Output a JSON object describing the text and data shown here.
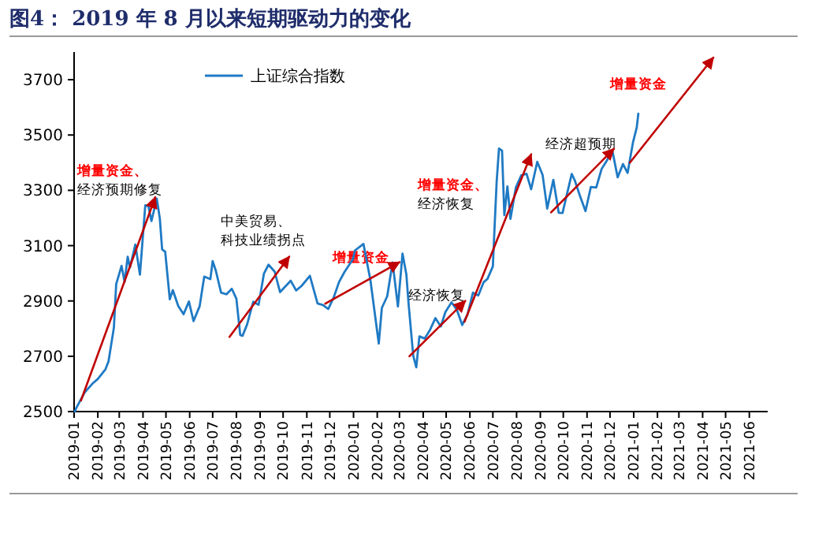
{
  "chart_data": {
    "type": "line",
    "title": "图4：  2019 年 8 月以来短期驱动力的变化",
    "xlim": [
      "2019-01-01",
      "2021-06-25"
    ],
    "xticks": [
      "2019-01",
      "2019-02",
      "2019-03",
      "2019-04",
      "2019-05",
      "2019-06",
      "2019-07",
      "2019-08",
      "2019-09",
      "2019-10",
      "2019-11",
      "2019-12",
      "2020-01",
      "2020-02",
      "2020-03",
      "2020-04",
      "2020-05",
      "2020-06",
      "2020-07",
      "2020-08",
      "2020-09",
      "2020-10",
      "2020-11",
      "2020-12",
      "2021-01",
      "2021-02",
      "2021-03",
      "2021-04",
      "2021-05",
      "2021-06"
    ],
    "ylim": [
      2500,
      3800
    ],
    "yticks": [
      2500,
      2700,
      2900,
      3100,
      3300,
      3500,
      3700
    ],
    "legend": "top left",
    "grid": false,
    "series": [
      {
        "name": "上证综合指数",
        "color": "#1f7ac4",
        "type": "line",
        "x": [
          "2019-01-02",
          "2019-01-04",
          "2019-01-15",
          "2019-01-25",
          "2019-02-01",
          "2019-02-11",
          "2019-02-15",
          "2019-02-22",
          "2019-02-25",
          "2019-03-04",
          "2019-03-08",
          "2019-03-12",
          "2019-03-15",
          "2019-03-22",
          "2019-03-28",
          "2019-04-04",
          "2019-04-08",
          "2019-04-12",
          "2019-04-19",
          "2019-04-23",
          "2019-04-26",
          "2019-04-30",
          "2019-05-06",
          "2019-05-10",
          "2019-05-17",
          "2019-05-24",
          "2019-05-31",
          "2019-06-06",
          "2019-06-14",
          "2019-06-20",
          "2019-06-28",
          "2019-07-01",
          "2019-07-05",
          "2019-07-12",
          "2019-07-19",
          "2019-07-26",
          "2019-08-01",
          "2019-08-06",
          "2019-08-09",
          "2019-08-15",
          "2019-08-23",
          "2019-08-30",
          "2019-09-06",
          "2019-09-12",
          "2019-09-20",
          "2019-09-27",
          "2019-10-11",
          "2019-10-18",
          "2019-10-25",
          "2019-11-05",
          "2019-11-15",
          "2019-11-22",
          "2019-11-29",
          "2019-12-06",
          "2019-12-13",
          "2019-12-20",
          "2019-12-31",
          "2020-01-03",
          "2020-01-14",
          "2020-01-23",
          "2020-02-03",
          "2020-02-07",
          "2020-02-14",
          "2020-02-21",
          "2020-02-28",
          "2020-03-05",
          "2020-03-10",
          "2020-03-13",
          "2020-03-19",
          "2020-03-23",
          "2020-03-27",
          "2020-04-03",
          "2020-04-10",
          "2020-04-17",
          "2020-04-24",
          "2020-04-30",
          "2020-05-08",
          "2020-05-15",
          "2020-05-22",
          "2020-05-29",
          "2020-06-05",
          "2020-06-12",
          "2020-06-19",
          "2020-06-24",
          "2020-07-01",
          "2020-07-03",
          "2020-07-06",
          "2020-07-09",
          "2020-07-13",
          "2020-07-16",
          "2020-07-20",
          "2020-07-24",
          "2020-07-31",
          "2020-08-07",
          "2020-08-14",
          "2020-08-20",
          "2020-08-28",
          "2020-09-04",
          "2020-09-10",
          "2020-09-18",
          "2020-09-25",
          "2020-09-30",
          "2020-10-12",
          "2020-10-16",
          "2020-10-23",
          "2020-10-30",
          "2020-11-06",
          "2020-11-13",
          "2020-11-20",
          "2020-11-27",
          "2020-12-04",
          "2020-12-11",
          "2020-12-18",
          "2020-12-24",
          "2020-12-31",
          "2021-01-05",
          "2021-01-07"
        ],
        "values": [
          2500,
          2514,
          2570,
          2601,
          2618,
          2653,
          2682,
          2804,
          2961,
          3027,
          2969,
          3060,
          3021,
          3104,
          2995,
          3246,
          3244,
          3189,
          3270,
          3198,
          3086,
          3078,
          2906,
          2939,
          2882,
          2852,
          2898,
          2827,
          2881,
          2988,
          2979,
          3044,
          3011,
          2930,
          2924,
          2944,
          2908,
          2777,
          2774,
          2815,
          2897,
          2886,
          2999,
          3031,
          3006,
          2932,
          2973,
          2938,
          2954,
          2991,
          2891,
          2885,
          2871,
          2912,
          2968,
          3004,
          3050,
          3083,
          3106,
          2976,
          2746,
          2875,
          2917,
          3039,
          2880,
          3071,
          2996,
          2887,
          2702,
          2660,
          2772,
          2764,
          2796,
          2838,
          2808,
          2860,
          2895,
          2868,
          2813,
          2852,
          2930,
          2920,
          2968,
          2980,
          3025,
          3153,
          3333,
          3451,
          3443,
          3210,
          3314,
          3197,
          3310,
          3354,
          3360,
          3304,
          3403,
          3355,
          3234,
          3338,
          3219,
          3218,
          3359,
          3336,
          3278,
          3225,
          3312,
          3310,
          3377,
          3408,
          3444,
          3347,
          3395,
          3363,
          3473,
          3528,
          3577
        ]
      },
      {
        "color": "#c00000",
        "type": "line",
        "x": [
          "2019-01-10",
          "2019-04-17"
        ],
        "values": [
          2540,
          3275
        ]
      },
      {
        "color": "#c00000",
        "type": "line",
        "x": [
          "2019-07-23",
          "2019-10-09"
        ],
        "values": [
          2770,
          3060
        ]
      },
      {
        "color": "#c00000",
        "type": "line",
        "x": [
          "2019-11-25",
          "2020-03-01"
        ],
        "values": [
          2890,
          3040
        ]
      },
      {
        "color": "#c00000",
        "type": "line",
        "x": [
          "2020-03-14",
          "2020-05-26"
        ],
        "values": [
          2700,
          2900
        ]
      },
      {
        "color": "#c00000",
        "type": "line",
        "x": [
          "2020-05-25",
          "2020-08-20"
        ],
        "values": [
          2825,
          3430
        ]
      },
      {
        "color": "#c00000",
        "type": "line",
        "x": [
          "2020-09-15",
          "2020-12-06"
        ],
        "values": [
          3220,
          3450
        ]
      },
      {
        "color": "#c00000",
        "type": "line",
        "x": [
          "2020-12-27",
          "2021-04-15"
        ],
        "values": [
          3400,
          3780
        ]
      }
    ],
    "annotations": [
      "增量资金、",
      "经济预期修复",
      "中美贸易、",
      "科技业绩拐点",
      "增量资金",
      "经济恢复",
      "增量资金、",
      "经济恢复",
      "经济超预期",
      "增量资金"
    ]
  }
}
